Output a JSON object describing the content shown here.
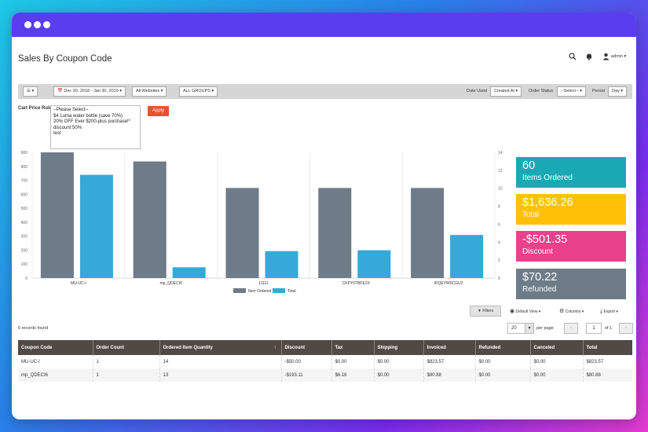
{
  "page": {
    "title": "Sales By Coupon Code"
  },
  "header": {
    "search_icon": "search-icon",
    "bell_icon": "bell-icon",
    "user_icon": "user-icon",
    "user_label": "admin ▾"
  },
  "toolbar": {
    "menu_label": "☰ ▾",
    "date_range": "📅 Dec 30, 2018 - Jan 30, 2019 ▾",
    "websites": "All Websites ▾",
    "groups": "ALL GROUPS ▾",
    "date_used_label": "Date Used",
    "date_used_value": "Created At ▾",
    "order_status_label": "Order Status",
    "order_status_value": "--Select-- ▾",
    "period_label": "Period",
    "period_value": "Day ▾"
  },
  "cart_rule": {
    "label": "Cart Price Rule",
    "options": [
      "--Please Select--",
      "$4 Luma water bottle (save 70%)",
      "20% OFF Ever $200-plus purchase!*",
      "discount 50%",
      "test"
    ],
    "apply": "Apply"
  },
  "chart_data": {
    "type": "bar",
    "categories": [
      "MU-UC-I",
      "mp_QDECI6",
      "11111",
      "CKPY6TBFE2X",
      "IPQEYW0CGU2"
    ],
    "series": [
      {
        "name": "Item Ordered",
        "values": [
          900,
          835,
          645,
          645,
          645
        ],
        "color": "#6e7b88",
        "axis": "left"
      },
      {
        "name": "Total",
        "values": [
          11.5,
          1.2,
          3.0,
          3.1,
          4.8
        ],
        "color": "#36a9d8",
        "axis": "right"
      }
    ],
    "ylim_left": [
      0,
      900
    ],
    "yticks_left": [
      "900",
      "800",
      "700",
      "600",
      "500",
      "400",
      "300",
      "200",
      "100",
      "0"
    ],
    "ylim_right": [
      0,
      14
    ],
    "yticks_right": [
      "14",
      "12",
      "10",
      "8",
      "6",
      "4",
      "2",
      "0"
    ],
    "legend_position": "bottom",
    "grid": "vertical"
  },
  "cards": [
    {
      "value": "60",
      "label": "Items Ordered",
      "color": "#1ba8b5"
    },
    {
      "value": "$1,636.26",
      "label": "Total",
      "color": "#ffc107"
    },
    {
      "value": "-$501.35",
      "label": "Discount",
      "color": "#e9418b"
    },
    {
      "value": "$70.22",
      "label": "Refunded",
      "color": "#6e7b88"
    }
  ],
  "grid_controls": {
    "filters": "Filters",
    "default_view": "Default View ▾",
    "columns": "Columns ▾",
    "export": "Export ▾",
    "records": "6 records found",
    "per_page_value": "20",
    "per_page_label": "per page",
    "page_value": "1",
    "page_of": "of 1"
  },
  "table": {
    "headers": [
      "Coupon Code",
      "Order Count",
      "Ordered Item Quantity",
      "Discount",
      "Tax",
      "Shipping",
      "Invoiced",
      "Refunded",
      "Canceled",
      "Total"
    ],
    "sort_indicator": "↑",
    "rows": [
      [
        "MU-UC-I",
        "1",
        "14",
        "-$50.00",
        "$0.00",
        "$0.00",
        "$823.57",
        "$0.00",
        "$0.00",
        "$823.57"
      ],
      [
        "mp_QDECI6",
        "1",
        "13",
        "-$193.11",
        "$6.16",
        "$0.00",
        "$80.88",
        "$0.00",
        "$0.00",
        "$80.88"
      ]
    ]
  }
}
